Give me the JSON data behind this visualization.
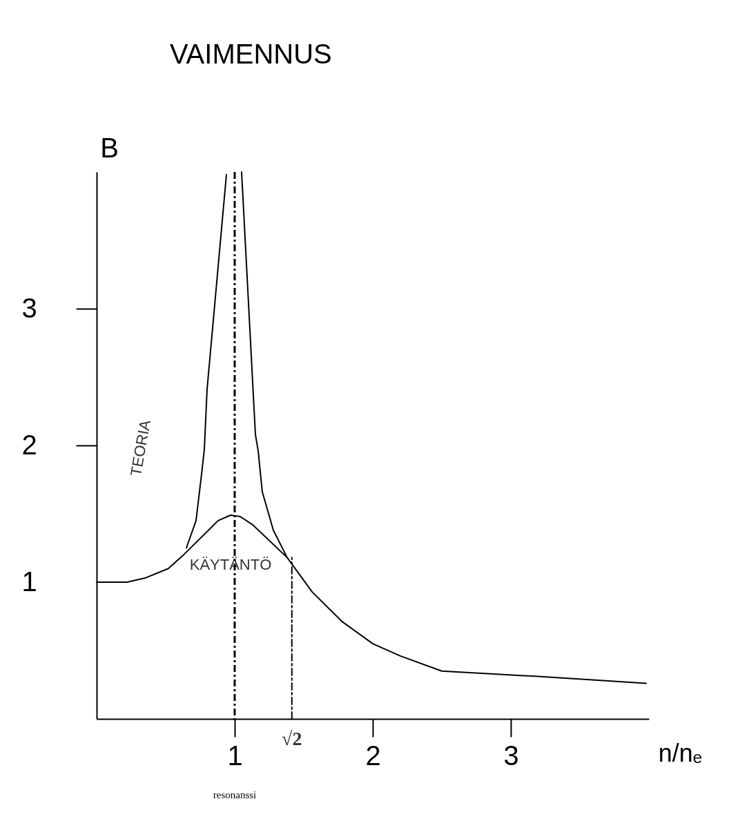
{
  "chart_data": {
    "type": "line",
    "title": "VAIMENNUS",
    "xlabel": "n/nₑ",
    "ylabel": "B",
    "xlim": [
      0,
      4.0
    ],
    "ylim": [
      0,
      4.0
    ],
    "xticks": [
      1,
      2,
      3
    ],
    "yticks": [
      1,
      2,
      3
    ],
    "grid": false,
    "marker": "none",
    "series": [
      {
        "name": "TEORIA",
        "color": "#000000",
        "line_style": "solid",
        "x": [
          0.65,
          0.72,
          0.76,
          0.78,
          0.8,
          0.94,
          1.0,
          1.05,
          1.15,
          1.17,
          1.2,
          1.28,
          1.38
        ],
        "values": [
          1.25,
          1.45,
          1.79,
          1.97,
          2.41,
          3.98,
          null,
          4.0,
          2.08,
          1.96,
          1.66,
          1.38,
          1.18
        ]
      },
      {
        "name": "KÄYTÄNTÖ",
        "color": "#000000",
        "line_style": "solid",
        "x": [
          0,
          0.22,
          0.35,
          0.52,
          0.63,
          0.88,
          0.97,
          1.04,
          1.13,
          1.38,
          1.56,
          1.78,
          2.0,
          2.2,
          2.5,
          3.2,
          3.98
        ],
        "values": [
          1.0,
          1.0,
          1.03,
          1.1,
          1.2,
          1.45,
          1.49,
          1.48,
          1.42,
          1.18,
          0.93,
          0.71,
          0.55,
          0.46,
          0.35,
          0.31,
          0.26
        ]
      },
      {
        "color": "#000000",
        "line_style": "dashed",
        "x": [
          1.414,
          1.414
        ],
        "values": [
          0,
          1.18
        ]
      }
    ],
    "ref_lines": [
      {
        "axis": "x",
        "value": 1,
        "color": "#000000",
        "line_style": "dashed"
      }
    ],
    "annotations": [
      "resonanssi",
      {
        "text": "√2",
        "x": 1.414,
        "y": 0
      }
    ]
  }
}
